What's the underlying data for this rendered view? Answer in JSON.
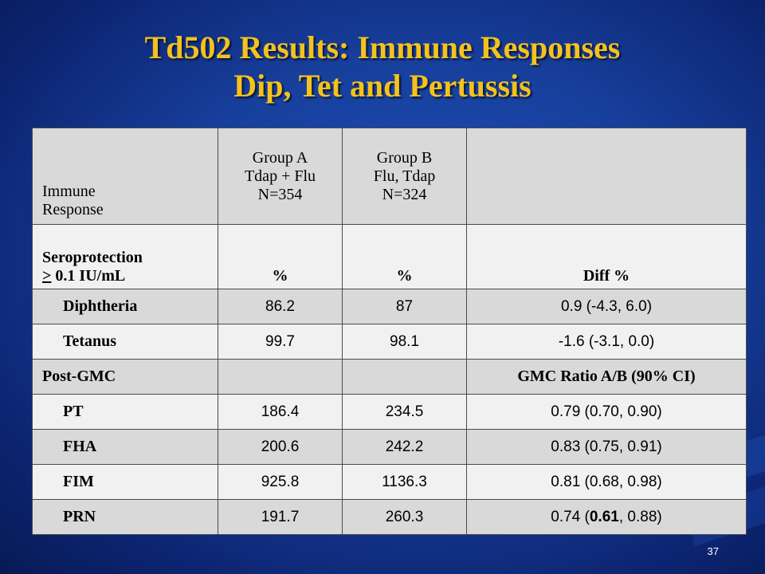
{
  "slide": {
    "title_line1": "Td502 Results: Immune Responses",
    "title_line2": "Dip, Tet and Pertussis",
    "page_number": "37"
  },
  "table": {
    "header": {
      "col1_line1": "Immune",
      "col1_line2": "Response",
      "col2_line1": "Group A",
      "col2_line2": "Tdap + Flu",
      "col2_line3": "N=354",
      "col3_line1": "Group B",
      "col3_line2": "Flu, Tdap",
      "col3_line3": "N=324",
      "col4": ""
    },
    "seroprotection": {
      "label_line1": "Seroprotection",
      "label_ge": ">",
      "label_line2_rest": " 0.1 IU/mL",
      "col2": "%",
      "col3": "%",
      "col4": "Diff %"
    },
    "diphtheria": {
      "label": "Diphtheria",
      "a": "86.2",
      "b": "87",
      "diff": "0.9 (-4.3, 6.0)"
    },
    "tetanus": {
      "label": "Tetanus",
      "a": "99.7",
      "b": "98.1",
      "diff": "-1.6 (-3.1, 0.0)"
    },
    "postgmc": {
      "label": "Post-GMC",
      "col4": "GMC Ratio A/B (90% CI)"
    },
    "pt": {
      "label": "PT",
      "a": "186.4",
      "b": "234.5",
      "ratio": "0.79 (0.70, 0.90)"
    },
    "fha": {
      "label": "FHA",
      "a": "200.6",
      "b": "242.2",
      "ratio": "0.83 (0.75, 0.91)"
    },
    "fim": {
      "label": "FIM",
      "a": "925.8",
      "b": "1136.3",
      "ratio": "0.81 (0.68, 0.98)"
    },
    "prn": {
      "label": "PRN",
      "a": "191.7",
      "b": "260.3",
      "ratio_pre": "0.74 (",
      "ratio_bold": "0.61",
      "ratio_post": ", 0.88)"
    }
  }
}
